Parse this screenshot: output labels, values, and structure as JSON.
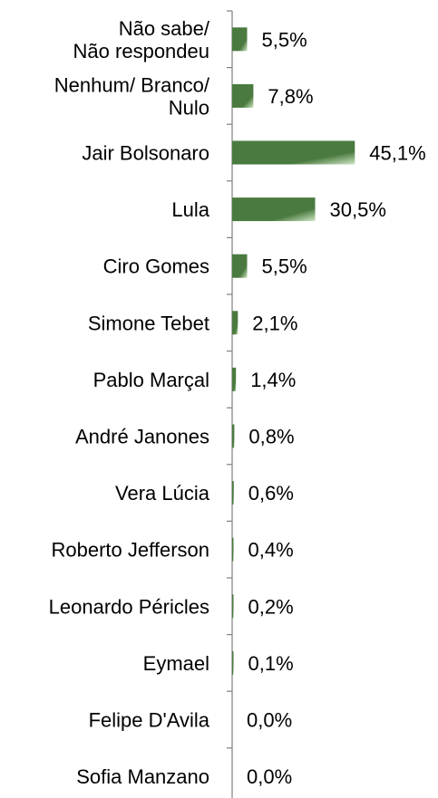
{
  "chart_data": {
    "type": "bar",
    "orientation": "horizontal",
    "title": "",
    "xlabel": "",
    "ylabel": "",
    "categories": [
      [
        "Não sabe/",
        "Não respondeu"
      ],
      [
        "Nenhum/ Branco/",
        "Nulo"
      ],
      [
        "Jair Bolsonaro"
      ],
      [
        "Lula"
      ],
      [
        "Ciro Gomes"
      ],
      [
        "Simone Tebet"
      ],
      [
        "Pablo Marçal"
      ],
      [
        "André Janones"
      ],
      [
        "Vera Lúcia"
      ],
      [
        "Roberto Jefferson"
      ],
      [
        "Leonardo Péricles"
      ],
      [
        "Eymael"
      ],
      [
        "Felipe D'Avila"
      ],
      [
        "Sofia Manzano"
      ]
    ],
    "values": [
      5.5,
      7.8,
      45.1,
      30.5,
      5.5,
      2.1,
      1.4,
      0.8,
      0.6,
      0.4,
      0.2,
      0.1,
      0.0,
      0.0
    ],
    "value_labels": [
      "5,5%",
      "7,8%",
      "45,1%",
      "30,5%",
      "5,5%",
      "2,1%",
      "1,4%",
      "0,8%",
      "0,6%",
      "0,4%",
      "0,2%",
      "0,1%",
      "0,0%",
      "0,0%"
    ],
    "xlim": [
      0,
      50
    ],
    "grid": false,
    "legend": "none",
    "bar_color": "#4a7a3f",
    "bar_highlight_color": "#cfe6c4"
  }
}
